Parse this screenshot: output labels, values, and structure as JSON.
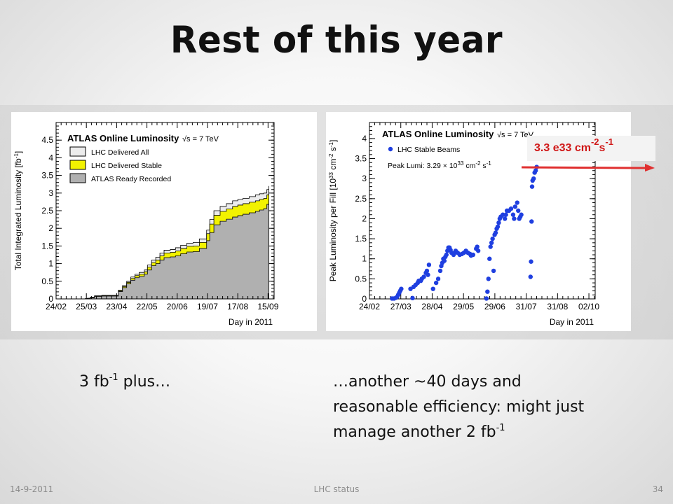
{
  "slide": {
    "title": "Rest of this year",
    "caption_left": {
      "main": "3 fb",
      "sup": "-1",
      "suffix": " plus…"
    },
    "caption_right": {
      "line1": "…another ~40 days and",
      "line2": "reasonable efficiency: might just",
      "line3": "manage another 2 fb",
      "sup": "-1"
    },
    "callout": {
      "main": "3.3 e33 cm",
      "sup1": "-2",
      "mid": "s",
      "sup2": "-1"
    },
    "footer": {
      "date": "14-9-2011",
      "center": "LHC status",
      "page": "34"
    },
    "colors": {
      "callout_text": "#d01818",
      "arrow": "#e03030",
      "series_blue": "#1f3fe0",
      "stable_yellow": "#f2f200",
      "recorded_gray": "#b0b0b0"
    }
  },
  "chart_data": [
    {
      "type": "area",
      "title": "ATLAS Online Luminosity",
      "annotation": "√s = 7 TeV",
      "xlabel": "Day in 2011",
      "ylabel": "Total Integrated Luminosity [fb",
      "ylabel_sup": "-1",
      "ylabel_close": "]",
      "xticks": [
        "24/02",
        "25/03",
        "23/04",
        "22/05",
        "20/06",
        "19/07",
        "17/08",
        "15/09"
      ],
      "xlim": [
        0,
        210
      ],
      "ylim": [
        0,
        5
      ],
      "yticks": [
        "0",
        "0.5",
        "1",
        "1.5",
        "2",
        "2.5",
        "3",
        "3.5",
        "4",
        "4.5"
      ],
      "legend": [
        "LHC Delivered All",
        "LHC Delivered Stable",
        "ATLAS Ready Recorded"
      ],
      "x": [
        0,
        18,
        28,
        30,
        33,
        37,
        44,
        50,
        56,
        60,
        64,
        68,
        72,
        76,
        80,
        85,
        88,
        92,
        96,
        100,
        104,
        110,
        115,
        120,
        126,
        132,
        138,
        145,
        148,
        152,
        158,
        164,
        170,
        175,
        180,
        186,
        192,
        196,
        200,
        203,
        205
      ],
      "series": [
        {
          "name": "LHC Delivered All",
          "values": [
            0,
            0,
            0.01,
            0.02,
            0.05,
            0.09,
            0.1,
            0.1,
            0.1,
            0.25,
            0.38,
            0.5,
            0.62,
            0.7,
            0.75,
            0.82,
            0.96,
            1.1,
            1.18,
            1.3,
            1.38,
            1.4,
            1.45,
            1.52,
            1.58,
            1.6,
            1.7,
            1.95,
            2.25,
            2.5,
            2.62,
            2.7,
            2.78,
            2.82,
            2.85,
            2.9,
            2.95,
            2.98,
            3.0,
            3.1,
            3.2
          ]
        },
        {
          "name": "LHC Delivered Stable",
          "values": [
            0,
            0,
            0.0,
            0.01,
            0.04,
            0.08,
            0.09,
            0.09,
            0.09,
            0.23,
            0.35,
            0.47,
            0.58,
            0.66,
            0.7,
            0.77,
            0.9,
            1.03,
            1.1,
            1.22,
            1.3,
            1.32,
            1.36,
            1.43,
            1.49,
            1.5,
            1.6,
            1.85,
            2.12,
            2.37,
            2.48,
            2.55,
            2.62,
            2.66,
            2.7,
            2.74,
            2.78,
            2.82,
            2.85,
            2.95,
            3.05
          ]
        },
        {
          "name": "ATLAS Ready Recorded",
          "values": [
            0,
            0,
            0.0,
            0.0,
            0.03,
            0.07,
            0.08,
            0.08,
            0.08,
            0.21,
            0.32,
            0.43,
            0.53,
            0.6,
            0.64,
            0.7,
            0.82,
            0.94,
            1.0,
            1.1,
            1.17,
            1.19,
            1.22,
            1.28,
            1.33,
            1.34,
            1.43,
            1.65,
            1.88,
            2.1,
            2.2,
            2.26,
            2.32,
            2.36,
            2.4,
            2.44,
            2.48,
            2.52,
            2.56,
            2.68,
            2.85
          ]
        }
      ]
    },
    {
      "type": "scatter",
      "title": "ATLAS Online Luminosity",
      "annotation": "√s = 7 TeV",
      "xlabel": "Day in 2011",
      "ylabel": "Peak Luminosity per Fill [10",
      "ylabel_sup": "33",
      "ylabel_tail": " cm",
      "ylabel_sup2": "-2",
      "ylabel_tail2": " s",
      "ylabel_sup3": "-1",
      "ylabel_close": "]",
      "xticks": [
        "24/02",
        "27/03",
        "28/04",
        "29/05",
        "29/06",
        "31/07",
        "31/08",
        "02/10"
      ],
      "xlim": [
        0,
        220
      ],
      "ylim": [
        0,
        4.4
      ],
      "yticks": [
        "0",
        "0.5",
        "1",
        "1.5",
        "2",
        "2.5",
        "3",
        "3.5",
        "4"
      ],
      "legend": [
        "LHC Stable Beams"
      ],
      "peak_text": "Peak Lumi: 3.29 × 10",
      "peak_sup": "33",
      "peak_tail": " cm",
      "peak_sup2": "-2",
      "peak_tail2": " s",
      "peak_sup3": "-1",
      "series": [
        {
          "name": "LHC Stable Beams",
          "points": [
            [
              22,
              0.01
            ],
            [
              24,
              0.01
            ],
            [
              26,
              0.03
            ],
            [
              27,
              0.05
            ],
            [
              28,
              0.1
            ],
            [
              29,
              0.15
            ],
            [
              30,
              0.2
            ],
            [
              31,
              0.25
            ],
            [
              40,
              0.25
            ],
            [
              42,
              0.02
            ],
            [
              43,
              0.3
            ],
            [
              45,
              0.35
            ],
            [
              47,
              0.4
            ],
            [
              48,
              0.45
            ],
            [
              50,
              0.45
            ],
            [
              51,
              0.5
            ],
            [
              53,
              0.55
            ],
            [
              55,
              0.65
            ],
            [
              56,
              0.7
            ],
            [
              58,
              0.85
            ],
            [
              57,
              0.6
            ],
            [
              62,
              0.25
            ],
            [
              65,
              0.4
            ],
            [
              67,
              0.5
            ],
            [
              69,
              0.7
            ],
            [
              70,
              0.82
            ],
            [
              71,
              0.9
            ],
            [
              72,
              1.0
            ],
            [
              73,
              0.95
            ],
            [
              74,
              1.05
            ],
            [
              75,
              1.1
            ],
            [
              76,
              1.2
            ],
            [
              77,
              1.28
            ],
            [
              78,
              1.28
            ],
            [
              79,
              1.22
            ],
            [
              80,
              1.15
            ],
            [
              82,
              1.1
            ],
            [
              83,
              1.15
            ],
            [
              84,
              1.2
            ],
            [
              86,
              1.15
            ],
            [
              88,
              1.1
            ],
            [
              90,
              1.12
            ],
            [
              92,
              1.15
            ],
            [
              94,
              1.2
            ],
            [
              96,
              1.15
            ],
            [
              98,
              1.12
            ],
            [
              99,
              1.08
            ],
            [
              101,
              1.1
            ],
            [
              104,
              1.25
            ],
            [
              105,
              1.3
            ],
            [
              106,
              1.2
            ],
            [
              114,
              0.01
            ],
            [
              115,
              0.18
            ],
            [
              116,
              0.5
            ],
            [
              117,
              1.0
            ],
            [
              118,
              1.3
            ],
            [
              119,
              1.4
            ],
            [
              120,
              1.5
            ],
            [
              121,
              0.7
            ],
            [
              122,
              1.6
            ],
            [
              123,
              1.65
            ],
            [
              124,
              1.75
            ],
            [
              125,
              1.8
            ],
            [
              126,
              1.9
            ],
            [
              127,
              2.0
            ],
            [
              128,
              2.05
            ],
            [
              130,
              2.1
            ],
            [
              132,
              2.0
            ],
            [
              133,
              2.1
            ],
            [
              134,
              2.2
            ],
            [
              136,
              2.2
            ],
            [
              138,
              2.25
            ],
            [
              140,
              2.1
            ],
            [
              141,
              2.0
            ],
            [
              142,
              2.3
            ],
            [
              144,
              2.4
            ],
            [
              145,
              2.2
            ],
            [
              146,
              2.0
            ],
            [
              147,
              2.05
            ],
            [
              148,
              2.1
            ],
            [
              157,
              0.55
            ],
            [
              157.5,
              0.93
            ],
            [
              158,
              1.93
            ],
            [
              158.5,
              2.8
            ],
            [
              159,
              2.95
            ],
            [
              160,
              3.0
            ],
            [
              161,
              3.15
            ],
            [
              162,
              3.2
            ],
            [
              163,
              3.29
            ]
          ]
        }
      ]
    }
  ]
}
